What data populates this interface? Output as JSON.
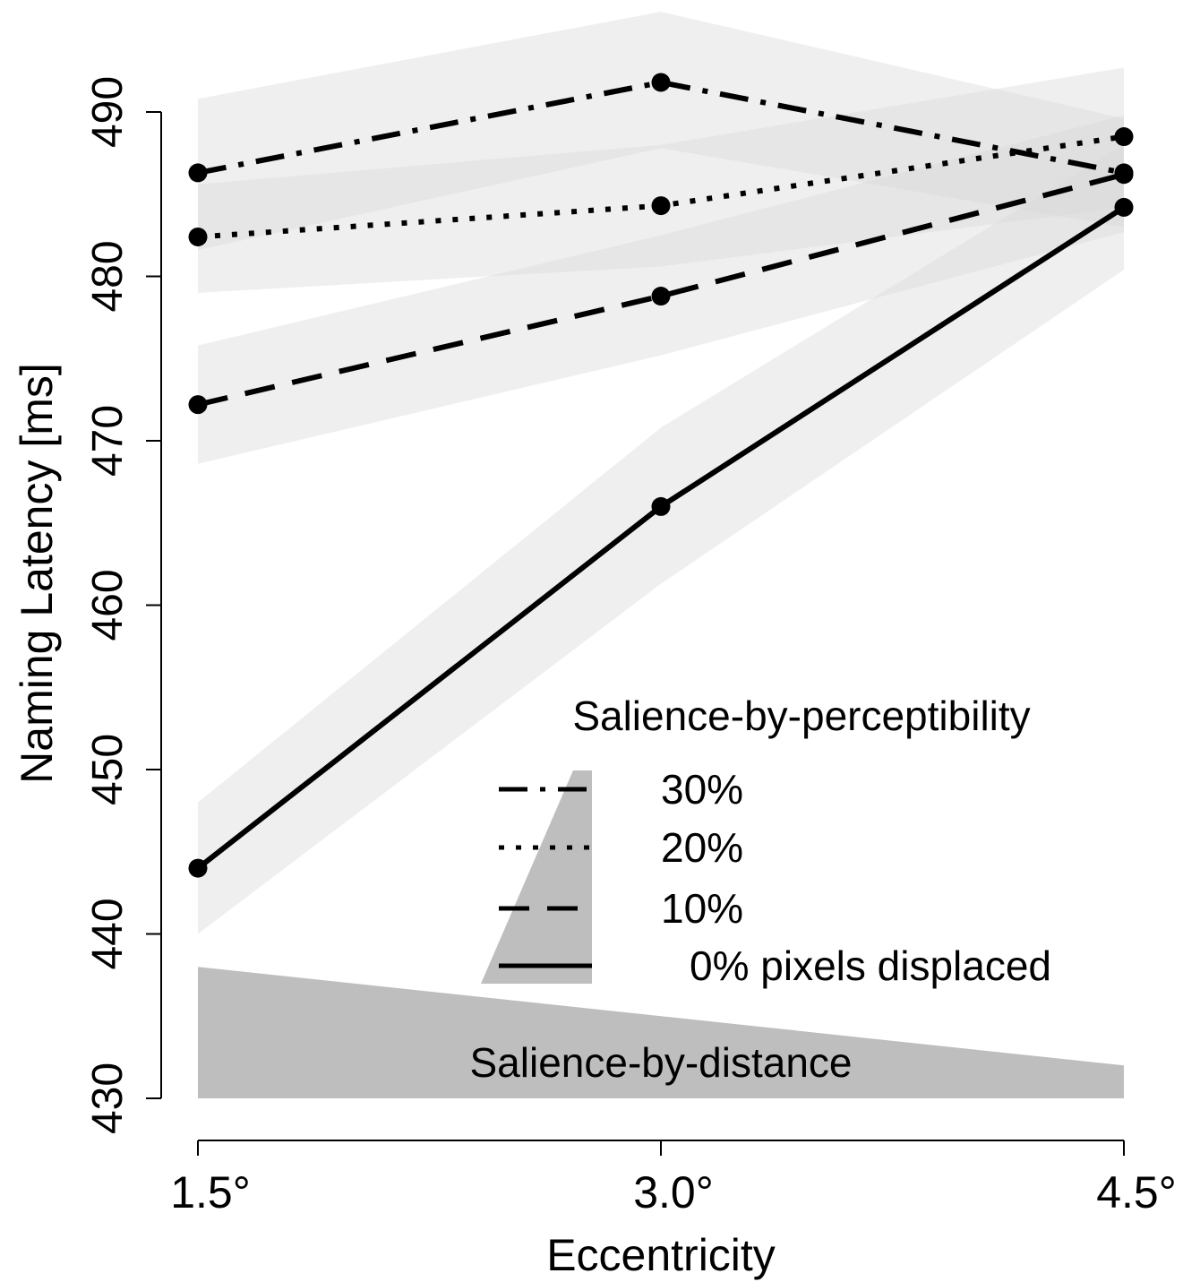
{
  "chart_data": {
    "type": "line",
    "xlabel": "Eccentricity",
    "ylabel": "Naming Latency [ms]",
    "x_ticks": [
      "1.5°",
      "3.0°",
      "4.5°"
    ],
    "x": [
      1.5,
      3.0,
      4.5
    ],
    "ylim": [
      430,
      490
    ],
    "y_ticks": [
      430,
      440,
      450,
      460,
      470,
      480,
      490
    ],
    "grid": false,
    "series": [
      {
        "name": "30%",
        "line_style": "dash-dot",
        "values": [
          486.3,
          491.8,
          486.3
        ],
        "ci_lower": [
          481.6,
          487.8,
          483.0
        ],
        "ci_upper": [
          490.8,
          496.1,
          489.6
        ]
      },
      {
        "name": "20%",
        "line_style": "dotted",
        "values": [
          482.4,
          484.3,
          488.5
        ],
        "ci_lower": [
          479.0,
          480.6,
          484.2
        ],
        "ci_upper": [
          485.6,
          488.0,
          492.7
        ]
      },
      {
        "name": "10%",
        "line_style": "dashed",
        "values": [
          472.2,
          478.8,
          486.2
        ],
        "ci_lower": [
          468.6,
          475.2,
          482.7
        ],
        "ci_upper": [
          475.8,
          482.5,
          489.8
        ]
      },
      {
        "name": "0% pixels displaced",
        "line_style": "solid",
        "values": [
          444.0,
          466.0,
          484.2
        ],
        "ci_lower": [
          440.0,
          461.3,
          480.4
        ],
        "ci_upper": [
          448.0,
          470.8,
          488.0
        ]
      }
    ],
    "legend": {
      "title": "Salience-by-perceptibility",
      "placement": "bottom-right"
    },
    "annotations": {
      "distance_label": "Salience-by-distance",
      "distance_wedge": [
        438,
        435,
        432
      ]
    },
    "colors": {
      "line": "#000000",
      "ci_band": "#d9d9d9",
      "wedge": "#bebebe"
    }
  }
}
